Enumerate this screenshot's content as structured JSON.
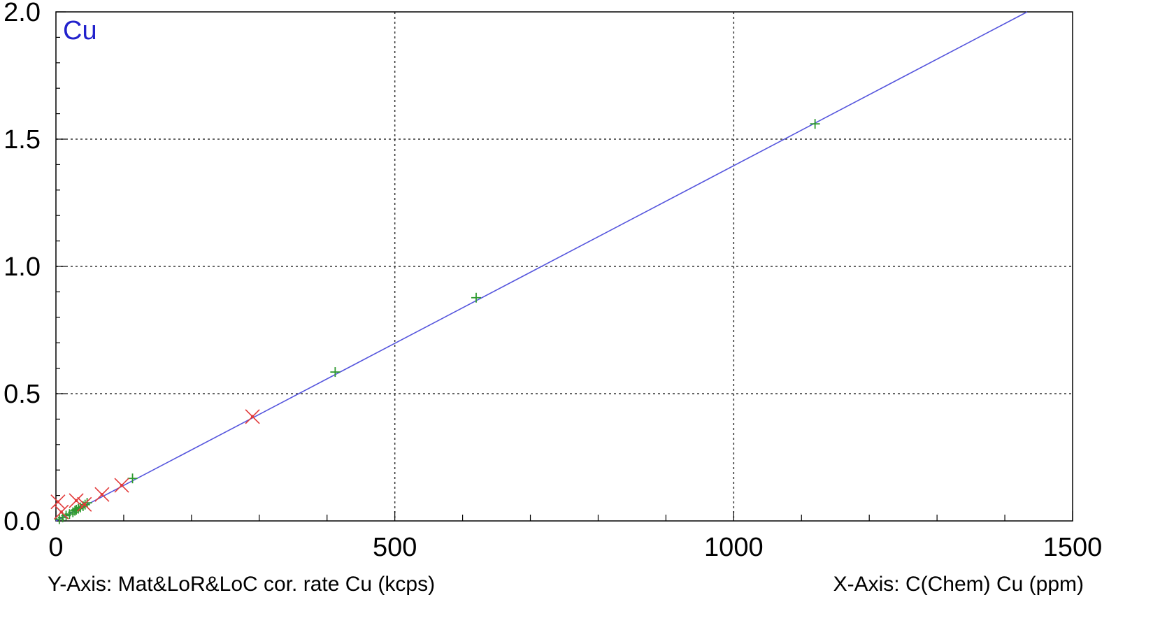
{
  "chart_data": {
    "type": "scatter",
    "title": "Cu",
    "ylabel": "Y-Axis: Mat&LoR&LoC cor. rate Cu (kcps)",
    "xlabel": "X-Axis: C(Chem) Cu (ppm)",
    "xlim": [
      0,
      1500
    ],
    "ylim": [
      0,
      2.0
    ],
    "x_ticks": [
      0,
      500,
      1000,
      1500
    ],
    "x_tick_labels": [
      "0",
      "500",
      "1000",
      "1500"
    ],
    "y_ticks": [
      0,
      0.5,
      1.0,
      1.5,
      2.0
    ],
    "y_tick_labels": [
      "0.0",
      "0.5",
      "1.0",
      "1.5",
      "2.0"
    ],
    "grid": true,
    "colors": {
      "title": "#2222cc",
      "fit_line": "#5555dd",
      "green_marker": "#2e9a2e",
      "red_marker": "#e23a3a",
      "grid": "#333333"
    },
    "fit_line": {
      "x": [
        0,
        1433
      ],
      "y": [
        0.0,
        2.0
      ]
    },
    "series": [
      {
        "marker": "plus",
        "color": "#2e9a2e",
        "x": [
          5,
          10,
          15,
          20,
          25,
          28,
          30,
          33,
          36,
          40,
          43,
          46,
          113,
          412,
          620,
          1120
        ],
        "y": [
          0.007,
          0.014,
          0.021,
          0.027,
          0.034,
          0.04,
          0.044,
          0.048,
          0.053,
          0.058,
          0.064,
          0.071,
          0.167,
          0.585,
          0.877,
          1.56
        ]
      },
      {
        "marker": "cross",
        "color": "#e23a3a",
        "x": [
          3,
          8,
          30,
          42,
          68,
          97,
          290
        ],
        "y": [
          0.075,
          0.035,
          0.08,
          0.065,
          0.104,
          0.14,
          0.41
        ]
      }
    ]
  }
}
